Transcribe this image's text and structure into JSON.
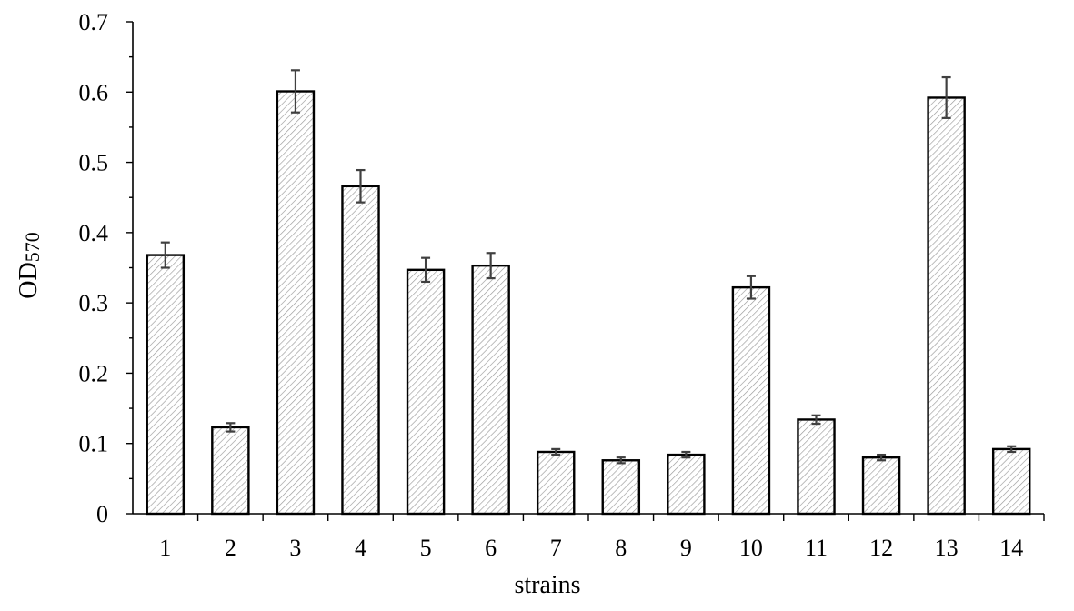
{
  "chart_data": {
    "type": "bar",
    "title": "",
    "xlabel": "strains",
    "ylabel": {
      "main": "OD",
      "subscript": "570"
    },
    "categories": [
      "1",
      "2",
      "3",
      "4",
      "5",
      "6",
      "7",
      "8",
      "9",
      "10",
      "11",
      "12",
      "13",
      "14"
    ],
    "values": [
      0.368,
      0.123,
      0.601,
      0.466,
      0.347,
      0.353,
      0.088,
      0.076,
      0.084,
      0.322,
      0.134,
      0.08,
      0.592,
      0.092
    ],
    "errors": [
      0.018,
      0.006,
      0.03,
      0.023,
      0.017,
      0.018,
      0.004,
      0.004,
      0.004,
      0.016,
      0.006,
      0.004,
      0.029,
      0.004
    ],
    "ylim": [
      0,
      0.7
    ],
    "yticks": [
      0,
      0.1,
      0.2,
      0.3,
      0.4,
      0.5,
      0.6,
      0.7
    ],
    "ytick_labels": [
      "0",
      "0.1",
      "0.2",
      "0.3",
      "0.4",
      "0.5",
      "0.6",
      "0.7"
    ],
    "bar_fill": "hatched diagonal lines",
    "bar_colors": {
      "fill": "#ffffff",
      "hatch": "#9a9a9a",
      "edge": "#000000",
      "error": "#404040"
    },
    "grid": false,
    "legend": "none"
  }
}
